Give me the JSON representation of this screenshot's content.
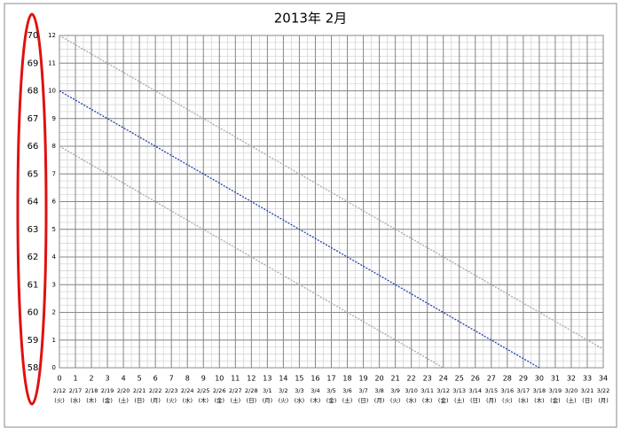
{
  "chart_data": {
    "type": "line",
    "title": "2013年 2月",
    "xlim": [
      0,
      34
    ],
    "xticks": [
      0,
      1,
      2,
      3,
      4,
      5,
      6,
      7,
      8,
      9,
      10,
      11,
      12,
      13,
      14,
      15,
      16,
      17,
      18,
      19,
      20,
      21,
      22,
      23,
      24,
      25,
      26,
      27,
      28,
      29,
      30,
      31,
      32,
      33,
      34
    ],
    "ylim": [
      0,
      12
    ],
    "yticks": [
      0,
      1,
      2,
      3,
      4,
      5,
      6,
      7,
      8,
      9,
      10,
      11,
      12
    ],
    "y2lim": [
      58,
      70
    ],
    "y2ticks": [
      58,
      59,
      60,
      61,
      62,
      63,
      64,
      65,
      66,
      67,
      68,
      69,
      70
    ],
    "dates": [
      "2/12",
      "2/17",
      "2/18",
      "2/19",
      "2/20",
      "2/21",
      "2/22",
      "2/23",
      "2/24",
      "2/25",
      "2/26",
      "2/27",
      "2/28",
      "3/1",
      "3/2",
      "3/3",
      "3/4",
      "3/5",
      "3/6",
      "3/7",
      "3/8",
      "3/9",
      "3/10",
      "3/11",
      "3/12",
      "3/13",
      "3/14",
      "3/15",
      "3/16",
      "3/17",
      "3/18",
      "3/19",
      "3/20",
      "3/21",
      "3/22"
    ],
    "weekdays": [
      "(火)",
      "(水)",
      "(木)",
      "(金)",
      "(土)",
      "(日)",
      "(月)",
      "(火)",
      "(水)",
      "(木)",
      "(金)",
      "(土)",
      "(日)",
      "(月)",
      "(火)",
      "(水)",
      "(木)",
      "(金)",
      "(土)",
      "(日)",
      "(月)",
      "(火)",
      "(水)",
      "(木)",
      "(金)",
      "(土)",
      "(日)",
      "(月)",
      "(火)",
      "(水)",
      "(木)",
      "(金)",
      "(土)",
      "(日)",
      "(月)"
    ],
    "grid": true,
    "series": [
      {
        "color": "#aaaaaa",
        "x": [
          0,
          34
        ],
        "values": [
          12,
          0.67
        ]
      },
      {
        "color": "#2040b0",
        "x": [
          0,
          30
        ],
        "values": [
          10,
          0
        ]
      },
      {
        "color": "#aaaaaa",
        "x": [
          0,
          24
        ],
        "values": [
          8,
          0
        ]
      }
    ]
  }
}
